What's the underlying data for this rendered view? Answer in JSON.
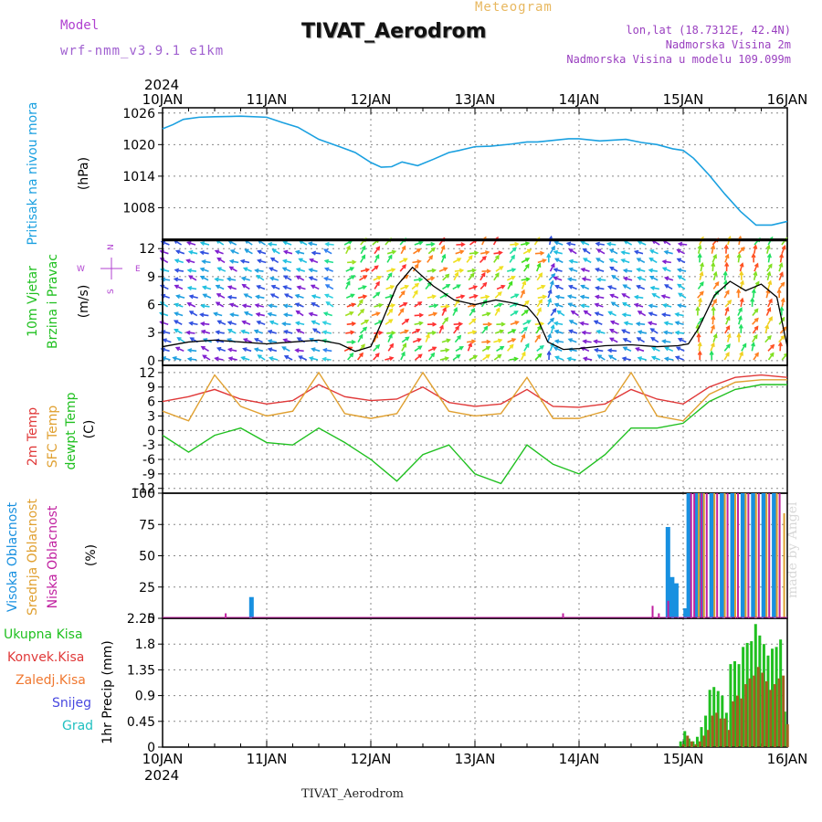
{
  "header": {
    "model_label": "Model",
    "model_name": "wrf-nmm_v3.9.1 e1km",
    "title": "TIVAT_Aerodrom",
    "meteogram_label": "Meteogram",
    "lonlat": "lon,lat (18.7312E, 42.4N)",
    "altitude": "Nadmorska Visina 2m",
    "model_altitude": "Nadmorska Visina u modelu 109.099m",
    "year": "2024"
  },
  "footer": {
    "station": "TIVAT_Aerodrom",
    "credit": "made by Angel"
  },
  "colors": {
    "pressure": "#1aa0e0",
    "temp2m": "#e03838",
    "sfc": "#e0a030",
    "dewpt": "#20c020",
    "high_cloud": "#1890e0",
    "mid_cloud": "#e0a030",
    "low_cloud": "#c020a0",
    "precip_total": "#20c020",
    "precip_conv": "#e03838",
    "precip_frz": "#f07830",
    "snow": "#4848e0",
    "hail": "#20c0c0",
    "grid": "#888888"
  },
  "x_axis": {
    "labels": [
      "10JAN",
      "11JAN",
      "12JAN",
      "13JAN",
      "14JAN",
      "15JAN",
      "16JAN"
    ],
    "year": "2024"
  },
  "chart_data": [
    {
      "type": "line",
      "panel": "pressure",
      "title": "",
      "ylabel": "Pritisak na nivou mora",
      "unit": "(hPa)",
      "yticks": [
        "1026",
        "1020",
        "1014",
        "1008"
      ],
      "ylim": [
        1002,
        1027
      ],
      "x": [
        0,
        0.1,
        0.2,
        0.35,
        0.5,
        0.75,
        1.0,
        1.15,
        1.3,
        1.5,
        1.7,
        1.85,
        2.0,
        2.1,
        2.2,
        2.3,
        2.45,
        2.6,
        2.75,
        2.85,
        3.0,
        3.15,
        3.35,
        3.5,
        3.6,
        3.75,
        3.9,
        4.0,
        4.2,
        4.45,
        4.6,
        4.75,
        4.9,
        5.0,
        5.1,
        5.25,
        5.4,
        5.55,
        5.7,
        5.85,
        6.0
      ],
      "series": [
        {
          "values": [
            1023,
            1023.8,
            1024.8,
            1025.2,
            1025.3,
            1025.4,
            1025.2,
            1024.2,
            1023.3,
            1021,
            1019.6,
            1018.5,
            1016.6,
            1015.7,
            1015.8,
            1016.7,
            1016,
            1017.2,
            1018.5,
            1018.9,
            1019.6,
            1019.7,
            1020.1,
            1020.5,
            1020.5,
            1020.8,
            1021.1,
            1021.1,
            1020.7,
            1021,
            1020.4,
            1020,
            1019.2,
            1018.9,
            1017.4,
            1014.2,
            1010.6,
            1007.3,
            1004.7,
            1004.7,
            1005.4
          ]
        }
      ]
    },
    {
      "type": "line",
      "panel": "wind",
      "title": "",
      "ylabel": "10m Vjetar Brzina i Pravac",
      "unit": "(m/s)",
      "compass": [
        "N",
        "E",
        "S",
        "W"
      ],
      "yticks": [
        "12",
        "9",
        "6",
        "3",
        "0"
      ],
      "ylim": [
        -0.5,
        13
      ],
      "x": [
        0,
        0.25,
        0.5,
        0.75,
        1.0,
        1.25,
        1.5,
        1.7,
        1.85,
        2.0,
        2.1,
        2.25,
        2.4,
        2.6,
        2.8,
        3.0,
        3.2,
        3.35,
        3.5,
        3.6,
        3.7,
        3.85,
        4.0,
        4.25,
        4.5,
        4.75,
        4.95,
        5.05,
        5.15,
        5.3,
        5.45,
        5.6,
        5.75,
        5.9,
        6.0
      ],
      "series": [
        {
          "name": "speed",
          "values": [
            1.5,
            2,
            2.2,
            2,
            1.8,
            2,
            2.2,
            1.8,
            1,
            1.5,
            4,
            8,
            10,
            8,
            6.5,
            6,
            6.5,
            6.2,
            5.8,
            4.5,
            2,
            1.2,
            1.3,
            1.6,
            1.7,
            1.5,
            1.6,
            1.8,
            3.5,
            7,
            8.5,
            7.5,
            8.2,
            6.8,
            1.5
          ]
        }
      ]
    },
    {
      "type": "line",
      "panel": "temperature",
      "title": "",
      "ylabel": "2m Temp | SFC Temp | dewpt Temp",
      "unit": "(C)",
      "yticks": [
        "12",
        "9",
        "6",
        "3",
        "0",
        "-3",
        "-6",
        "-9",
        "-12"
      ],
      "ylim": [
        -13,
        13.5
      ],
      "x": [
        0,
        0.25,
        0.5,
        0.75,
        1.0,
        1.25,
        1.5,
        1.75,
        2.0,
        2.25,
        2.5,
        2.75,
        3.0,
        3.25,
        3.5,
        3.75,
        4.0,
        4.25,
        4.5,
        4.75,
        5.0,
        5.25,
        5.5,
        5.75,
        6.0
      ],
      "series": [
        {
          "name": "2m Temp",
          "values": [
            6,
            7,
            8.5,
            6.5,
            5.5,
            6.2,
            9.5,
            7,
            6.2,
            6.5,
            9,
            5.8,
            5,
            5.5,
            8.5,
            5,
            4.8,
            5.5,
            8.5,
            6.5,
            5.5,
            9,
            11,
            11.5,
            11
          ]
        },
        {
          "name": "SFC Temp",
          "values": [
            4,
            2,
            11.5,
            5,
            3,
            4,
            12,
            3.5,
            2.5,
            3.5,
            12,
            4,
            3,
            3.5,
            11,
            2.5,
            2.5,
            4,
            12,
            3,
            2,
            7.5,
            10,
            10.5,
            10.5
          ]
        },
        {
          "name": "dewpt Temp",
          "values": [
            -1,
            -4.5,
            -1,
            0.5,
            -2.5,
            -3,
            0.5,
            -2.5,
            -6,
            -10.5,
            -5,
            -3,
            -9,
            -11,
            -3,
            -7,
            -9,
            -5,
            0.5,
            0.5,
            1.5,
            6,
            8.5,
            9.5,
            9.5
          ]
        }
      ]
    },
    {
      "type": "bar",
      "panel": "clouds",
      "title": "",
      "ylabel": "Visoka Oblacnost | Srednja Oblacnost | Niska Oblacnost",
      "unit": "(%)",
      "yticks": [
        "100",
        "75",
        "50",
        "25",
        "0"
      ],
      "ylim": [
        0,
        100
      ],
      "x": [
        0.58,
        0.88,
        3.82,
        4.68,
        4.74,
        4.83,
        4.88,
        4.92,
        4.96,
        5.05,
        5.08,
        5.15,
        5.2,
        5.3,
        5.4,
        5.5,
        5.6,
        5.7,
        5.8,
        5.9,
        5.97
      ],
      "series": [
        {
          "name": "Visoka Oblacnost",
          "values": [
            0,
            17,
            0,
            0,
            0,
            0,
            73,
            33,
            28,
            8,
            100,
            100,
            100,
            100,
            100,
            100,
            100,
            100,
            100,
            100,
            0
          ]
        },
        {
          "name": "Srednja Oblacnost",
          "values": [
            0,
            0,
            0,
            0,
            0,
            0,
            0,
            0,
            0,
            0,
            0,
            100,
            100,
            100,
            100,
            100,
            100,
            100,
            100,
            100,
            84
          ]
        },
        {
          "name": "Niska Oblacnost",
          "values": [
            4,
            0,
            4,
            10,
            4,
            14,
            0,
            0,
            0,
            100,
            100,
            100,
            100,
            100,
            100,
            100,
            100,
            100,
            100,
            100,
            0
          ]
        }
      ]
    },
    {
      "type": "bar",
      "panel": "precip",
      "title": "",
      "ylabel": "1hr Precip",
      "unit": "(mm)",
      "legend": [
        "Ukupna Kisa",
        "Konvek.Kisa",
        "Zaledj.Kisa",
        "Snijeg",
        "Grad"
      ],
      "yticks": [
        "2.25",
        "1.8",
        "1.35",
        "0.9",
        "0.45",
        "0"
      ],
      "ylim": [
        0,
        2.25
      ],
      "x": [
        4.98,
        5.02,
        5.06,
        5.1,
        5.14,
        5.18,
        5.22,
        5.26,
        5.3,
        5.34,
        5.38,
        5.42,
        5.46,
        5.5,
        5.54,
        5.58,
        5.62,
        5.66,
        5.7,
        5.74,
        5.78,
        5.82,
        5.86,
        5.9,
        5.94,
        5.98
      ],
      "series": [
        {
          "name": "Ukupna Kisa",
          "values": [
            0.1,
            0.28,
            0.15,
            0.1,
            0.18,
            0.35,
            0.55,
            1.0,
            1.05,
            0.98,
            0.9,
            0.6,
            1.45,
            1.5,
            1.45,
            1.75,
            1.82,
            1.85,
            2.15,
            1.95,
            1.8,
            1.6,
            1.72,
            1.75,
            1.88,
            0.62
          ]
        },
        {
          "name": "Konvek.Kisa",
          "values": [
            0.05,
            0.2,
            0.1,
            0.05,
            0.1,
            0.2,
            0.3,
            0.55,
            0.6,
            0.5,
            0.5,
            0.3,
            0.8,
            0.9,
            0.85,
            1.1,
            1.2,
            1.25,
            1.4,
            1.3,
            1.15,
            1.0,
            1.1,
            1.2,
            1.25,
            0.4
          ]
        }
      ]
    }
  ]
}
